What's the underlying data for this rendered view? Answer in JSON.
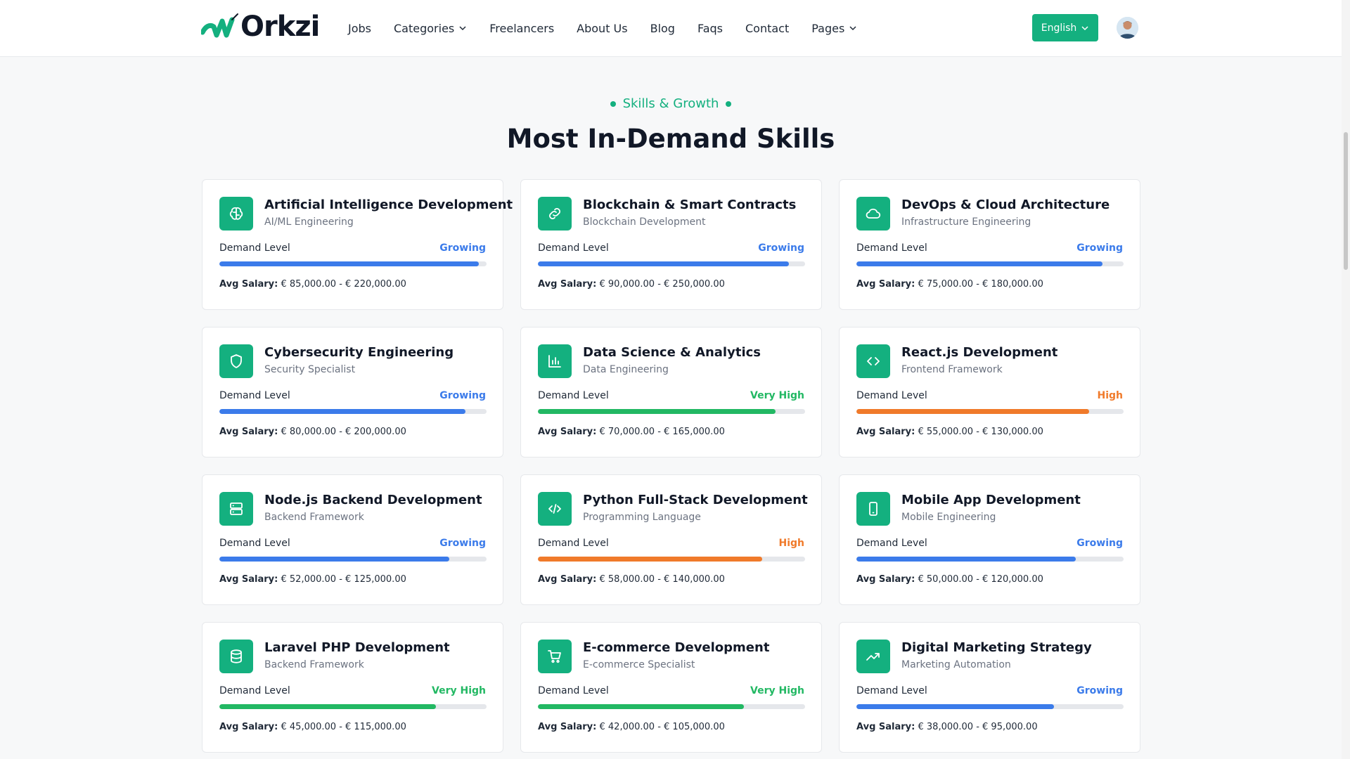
{
  "header": {
    "logo_text": "Orkzi",
    "nav": [
      {
        "label": "Jobs",
        "dropdown": false
      },
      {
        "label": "Categories",
        "dropdown": true
      },
      {
        "label": "Freelancers",
        "dropdown": false
      },
      {
        "label": "About Us",
        "dropdown": false
      },
      {
        "label": "Blog",
        "dropdown": false
      },
      {
        "label": "Faqs",
        "dropdown": false
      },
      {
        "label": "Contact",
        "dropdown": false
      },
      {
        "label": "Pages",
        "dropdown": true
      }
    ],
    "language": "English"
  },
  "section": {
    "eyebrow": "Skills & Growth",
    "title": "Most In-Demand Skills"
  },
  "colors": {
    "brand": "#14b07f",
    "Growing": "#3b7bea",
    "Very High": "#22b863",
    "High": "#f07a2a"
  },
  "labels": {
    "demand_level": "Demand Level",
    "avg_salary": "Avg Salary:"
  },
  "skills": [
    {
      "name": "Artificial Intelligence Development",
      "category": "AI/ML Engineering",
      "level": "Growing",
      "fill": 0.97,
      "salary": "€ 85,000.00 - € 220,000.00",
      "icon": "brain-icon"
    },
    {
      "name": "Blockchain & Smart Contracts",
      "category": "Blockchain Development",
      "level": "Growing",
      "fill": 0.94,
      "salary": "€ 90,000.00 - € 250,000.00",
      "icon": "link-icon"
    },
    {
      "name": "DevOps & Cloud Architecture",
      "category": "Infrastructure Engineering",
      "level": "Growing",
      "fill": 0.92,
      "salary": "€ 75,000.00 - € 180,000.00",
      "icon": "cloud-icon"
    },
    {
      "name": "Cybersecurity Engineering",
      "category": "Security Specialist",
      "level": "Growing",
      "fill": 0.92,
      "salary": "€ 80,000.00 - € 200,000.00",
      "icon": "shield-icon"
    },
    {
      "name": "Data Science & Analytics",
      "category": "Data Engineering",
      "level": "Very High",
      "fill": 0.89,
      "salary": "€ 70,000.00 - € 165,000.00",
      "icon": "bar-chart-icon"
    },
    {
      "name": "React.js Development",
      "category": "Frontend Framework",
      "level": "High",
      "fill": 0.87,
      "salary": "€ 55,000.00 - € 130,000.00",
      "icon": "code-icon"
    },
    {
      "name": "Node.js Backend Development",
      "category": "Backend Framework",
      "level": "Growing",
      "fill": 0.86,
      "salary": "€ 52,000.00 - € 125,000.00",
      "icon": "server-icon"
    },
    {
      "name": "Python Full-Stack Development",
      "category": "Programming Language",
      "level": "High",
      "fill": 0.84,
      "salary": "€ 58,000.00 - € 140,000.00",
      "icon": "code-slash-icon"
    },
    {
      "name": "Mobile App Development",
      "category": "Mobile Engineering",
      "level": "Growing",
      "fill": 0.82,
      "salary": "€ 50,000.00 - € 120,000.00",
      "icon": "smartphone-icon"
    },
    {
      "name": "Laravel PHP Development",
      "category": "Backend Framework",
      "level": "Very High",
      "fill": 0.81,
      "salary": "€ 45,000.00 - € 115,000.00",
      "icon": "database-icon"
    },
    {
      "name": "E-commerce Development",
      "category": "E-commerce Specialist",
      "level": "Very High",
      "fill": 0.77,
      "salary": "€ 42,000.00 - € 105,000.00",
      "icon": "cart-icon"
    },
    {
      "name": "Digital Marketing Strategy",
      "category": "Marketing Automation",
      "level": "Growing",
      "fill": 0.74,
      "salary": "€ 38,000.00 - € 95,000.00",
      "icon": "trending-up-icon"
    }
  ]
}
